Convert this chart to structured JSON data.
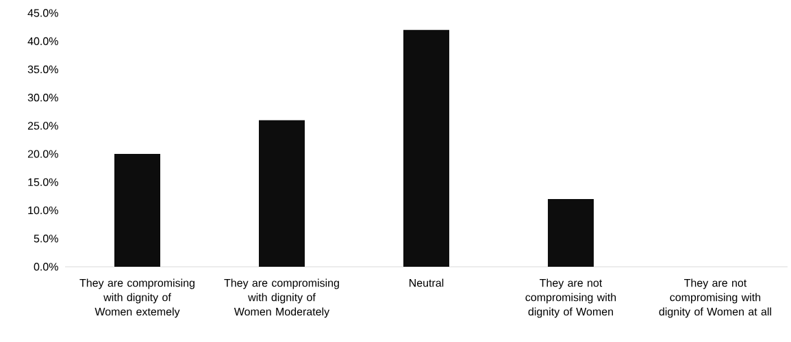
{
  "chart_data": {
    "type": "bar",
    "categories": [
      "They are compromising with dignity of Women extemely",
      "They are compromising with dignity of Women Moderately",
      "Neutral",
      "They are not compromising with dignity of Women",
      "They are not compromising with dignity of Women at all"
    ],
    "values": [
      20,
      26,
      42,
      12,
      0
    ],
    "color": "#0d0d0d",
    "ylim": [
      0,
      45
    ],
    "yticks": [
      {
        "value": 0,
        "label": "0.0%"
      },
      {
        "value": 5,
        "label": "5.0%"
      },
      {
        "value": 10,
        "label": "10.0%"
      },
      {
        "value": 15,
        "label": "15.0%"
      },
      {
        "value": 20,
        "label": "20.0%"
      },
      {
        "value": 25,
        "label": "25.0%"
      },
      {
        "value": 30,
        "label": "30.0%"
      },
      {
        "value": 35,
        "label": "35.0%"
      },
      {
        "value": 40,
        "label": "40.0%"
      },
      {
        "value": 45,
        "label": "45.0%"
      }
    ]
  }
}
